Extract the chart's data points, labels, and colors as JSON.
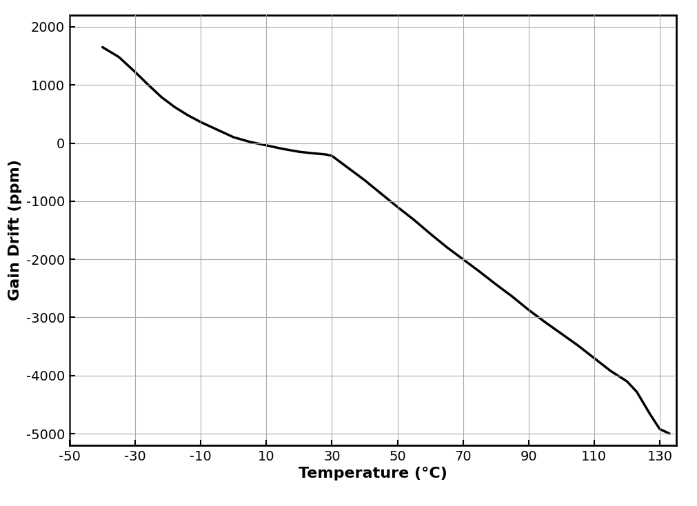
{
  "xlabel": "Temperature (°C)",
  "ylabel": "Gain Drift (ppm)",
  "xlim": [
    -50,
    135
  ],
  "ylim": [
    -5200,
    2200
  ],
  "xticks": [
    -50,
    -30,
    -10,
    10,
    30,
    50,
    70,
    90,
    110,
    130
  ],
  "yticks": [
    -5000,
    -4000,
    -3000,
    -2000,
    -1000,
    0,
    1000,
    2000
  ],
  "line_color": "#000000",
  "line_width": 2.5,
  "background_color": "#ffffff",
  "grid_color": "#aaaaaa",
  "curve_x": [
    -40,
    -35,
    -30,
    -26,
    -22,
    -18,
    -14,
    -10,
    -5,
    0,
    5,
    10,
    15,
    20,
    24,
    26,
    28,
    30,
    35,
    40,
    45,
    50,
    55,
    60,
    65,
    70,
    75,
    80,
    85,
    90,
    95,
    100,
    105,
    110,
    115,
    120,
    123,
    125,
    127,
    130,
    133
  ],
  "curve_y": [
    1650,
    1480,
    1220,
    1000,
    790,
    620,
    480,
    360,
    230,
    100,
    20,
    -40,
    -100,
    -150,
    -175,
    -185,
    -195,
    -220,
    -430,
    -640,
    -870,
    -1100,
    -1320,
    -1560,
    -1790,
    -2000,
    -2210,
    -2430,
    -2640,
    -2870,
    -3080,
    -3280,
    -3480,
    -3700,
    -3920,
    -4100,
    -4280,
    -4470,
    -4660,
    -4920,
    -5000
  ],
  "xlabel_fontsize": 16,
  "ylabel_fontsize": 16,
  "tick_fontsize": 14,
  "font_family": "Arial"
}
